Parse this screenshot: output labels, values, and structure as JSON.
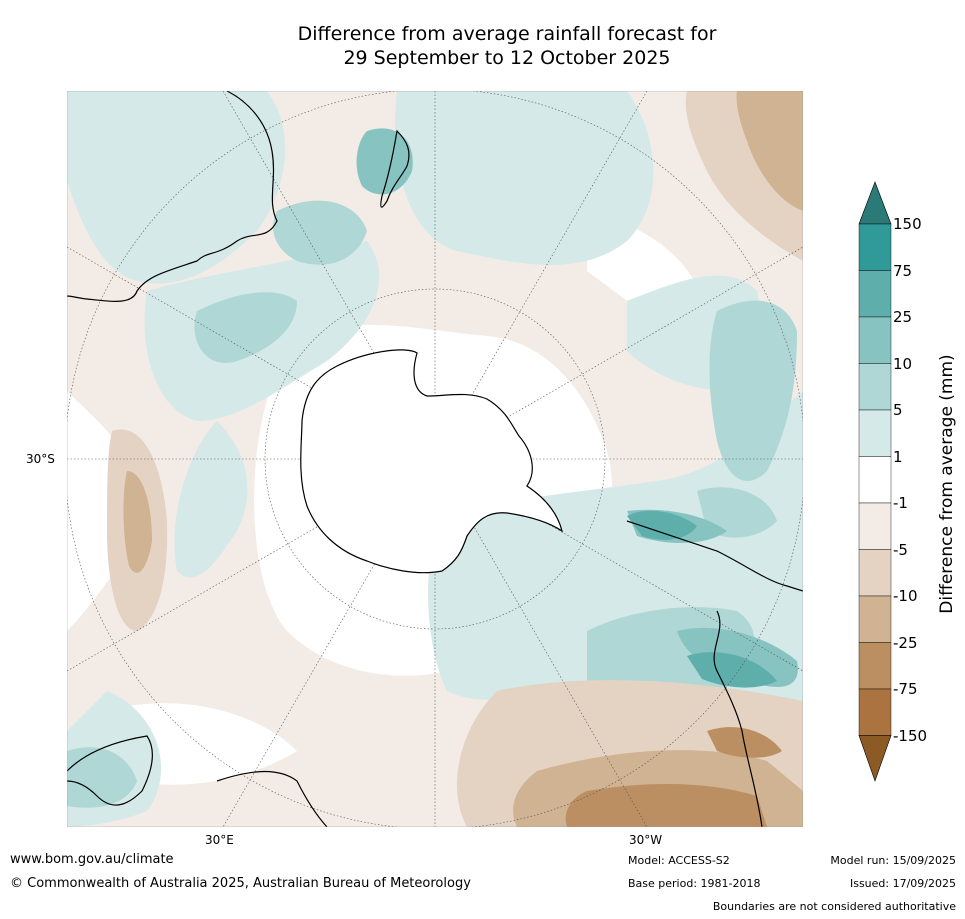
{
  "title": {
    "line1": "Difference from average rainfall forecast for",
    "line2": "29 September to 12 October 2025"
  },
  "axis_labels": {
    "lat_30s": "30°S",
    "lon_30e": "30°E",
    "lon_30w": "30°W"
  },
  "colorbar": {
    "label": "Difference from average (mm)",
    "levels": [
      "150",
      "75",
      "25",
      "10",
      "5",
      "1",
      "-1",
      "-5",
      "-10",
      "-25",
      "-75",
      "-150"
    ],
    "colors": {
      "over": "#2a7b78",
      "b75_150": "#2f9a98",
      "b25_75": "#5eaeac",
      "b10_25": "#87c4c1",
      "b5_10": "#afd7d5",
      "b1_5": "#d4e9e8",
      "b_neutral": "#ffffff",
      "bm5_m1": "#f3ece6",
      "bm10_m5": "#e4d3c3",
      "bm25_m10": "#d0b392",
      "bm75_m25": "#bb8f62",
      "bm150_m75": "#ab733f",
      "under": "#8c5a25"
    }
  },
  "footer": {
    "website": "www.bom.gov.au/climate",
    "copyright": "© Commonwealth of Australia 2025, Australian Bureau of Meteorology",
    "model": "Model: ACCESS-S2",
    "base_period": "Base period: 1981-2018",
    "model_run": "Model run: 15/09/2025",
    "issued": "Issued: 17/09/2025",
    "disclaimer": "Boundaries are not considered authoritative"
  }
}
